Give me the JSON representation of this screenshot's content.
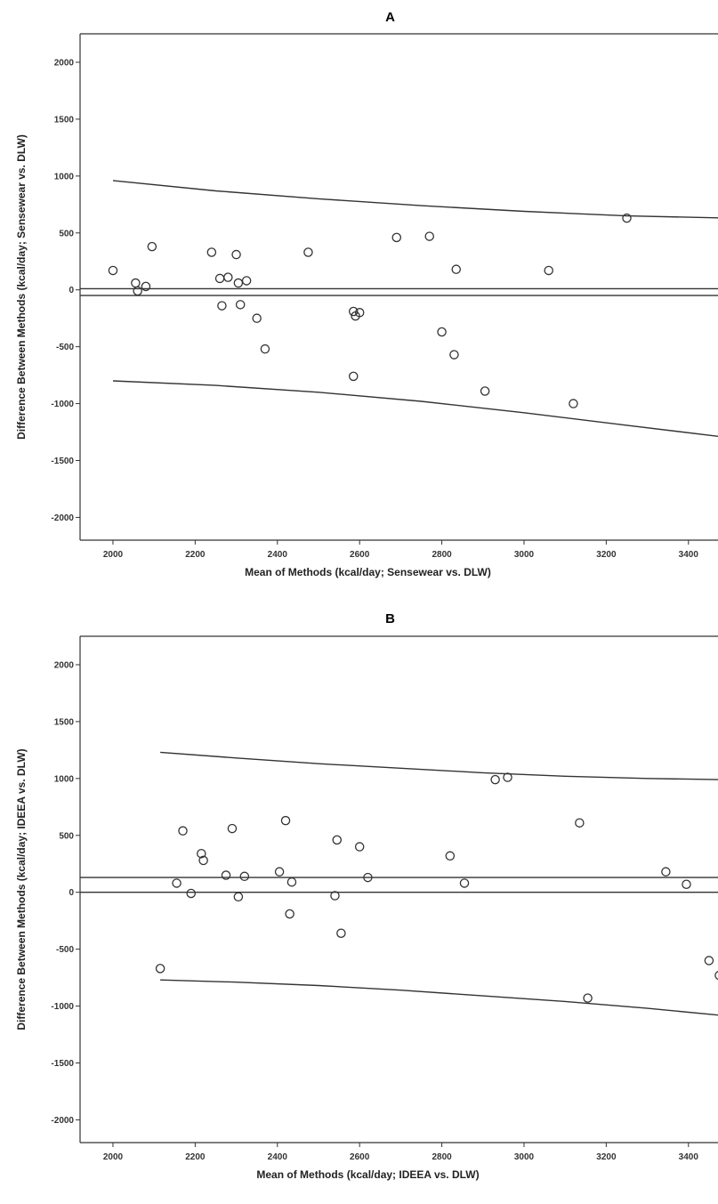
{
  "chart_data": [
    {
      "type": "scatter",
      "panel_label": "A",
      "xlabel": "Mean of Methods (kcal/day; Sensewear vs. DLW)",
      "ylabel": "Difference Between Methods (kcal/day; Sensewear vs. DLW)",
      "xlim": [
        1920,
        3500
      ],
      "ylim": [
        -2200,
        2250
      ],
      "xticks": [
        2000,
        2200,
        2400,
        2600,
        2800,
        3000,
        3200,
        3400
      ],
      "yticks": [
        2000,
        1500,
        1000,
        500,
        0,
        -500,
        -1000,
        -1500,
        -2000
      ],
      "grid": false,
      "points": [
        {
          "x": 2000,
          "y": 170
        },
        {
          "x": 2055,
          "y": 60
        },
        {
          "x": 2060,
          "y": -10
        },
        {
          "x": 2080,
          "y": 30
        },
        {
          "x": 2095,
          "y": 380
        },
        {
          "x": 2240,
          "y": 330
        },
        {
          "x": 2260,
          "y": 100
        },
        {
          "x": 2265,
          "y": -140
        },
        {
          "x": 2280,
          "y": 110
        },
        {
          "x": 2300,
          "y": 310
        },
        {
          "x": 2305,
          "y": 60
        },
        {
          "x": 2310,
          "y": -130
        },
        {
          "x": 2325,
          "y": 80
        },
        {
          "x": 2350,
          "y": -250
        },
        {
          "x": 2370,
          "y": -520
        },
        {
          "x": 2475,
          "y": 330
        },
        {
          "x": 2585,
          "y": -760
        },
        {
          "x": 2585,
          "y": -190
        },
        {
          "x": 2590,
          "y": -230
        },
        {
          "x": 2600,
          "y": -200
        },
        {
          "x": 2690,
          "y": 460
        },
        {
          "x": 2770,
          "y": 470
        },
        {
          "x": 2800,
          "y": -370
        },
        {
          "x": 2830,
          "y": -570
        },
        {
          "x": 2835,
          "y": 180
        },
        {
          "x": 2905,
          "y": -890
        },
        {
          "x": 3060,
          "y": 170
        },
        {
          "x": 3120,
          "y": -1000
        },
        {
          "x": 3250,
          "y": 630
        }
      ],
      "reference_lines": [
        {
          "y": 10
        },
        {
          "y": -50
        }
      ],
      "limit_curves": [
        {
          "x": [
            2000,
            2250,
            2500,
            2750,
            3000,
            3250,
            3500
          ],
          "y": [
            960,
            870,
            800,
            740,
            690,
            650,
            630
          ]
        },
        {
          "x": [
            2000,
            2250,
            2500,
            2750,
            3000,
            3250,
            3500
          ],
          "y": [
            -800,
            -840,
            -900,
            -980,
            -1080,
            -1190,
            -1300
          ]
        }
      ]
    },
    {
      "type": "scatter",
      "panel_label": "B",
      "xlabel": "Mean of Methods (kcal/day; IDEEA vs. DLW)",
      "ylabel": "Difference Between Methods (kcal/day; IDEEA vs. DLW)",
      "xlim": [
        1920,
        3500
      ],
      "ylim": [
        -2200,
        2250
      ],
      "xticks": [
        2000,
        2200,
        2400,
        2600,
        2800,
        3000,
        3200,
        3400
      ],
      "yticks": [
        2000,
        1500,
        1000,
        500,
        0,
        -500,
        -1000,
        -1500,
        -2000
      ],
      "grid": false,
      "points": [
        {
          "x": 2115,
          "y": -670
        },
        {
          "x": 2155,
          "y": 80
        },
        {
          "x": 2170,
          "y": 540
        },
        {
          "x": 2190,
          "y": -10
        },
        {
          "x": 2215,
          "y": 340
        },
        {
          "x": 2220,
          "y": 280
        },
        {
          "x": 2275,
          "y": 150
        },
        {
          "x": 2290,
          "y": 560
        },
        {
          "x": 2305,
          "y": -40
        },
        {
          "x": 2320,
          "y": 140
        },
        {
          "x": 2405,
          "y": 180
        },
        {
          "x": 2420,
          "y": 630
        },
        {
          "x": 2430,
          "y": -190
        },
        {
          "x": 2435,
          "y": 90
        },
        {
          "x": 2540,
          "y": -30
        },
        {
          "x": 2545,
          "y": 460
        },
        {
          "x": 2555,
          "y": -360
        },
        {
          "x": 2600,
          "y": 400
        },
        {
          "x": 2620,
          "y": 130
        },
        {
          "x": 2820,
          "y": 320
        },
        {
          "x": 2855,
          "y": 80
        },
        {
          "x": 2930,
          "y": 990
        },
        {
          "x": 2960,
          "y": 1010
        },
        {
          "x": 3135,
          "y": 610
        },
        {
          "x": 3155,
          "y": -930
        },
        {
          "x": 3345,
          "y": 180
        },
        {
          "x": 3395,
          "y": 70
        },
        {
          "x": 3450,
          "y": -600
        },
        {
          "x": 3475,
          "y": -730
        }
      ],
      "reference_lines": [
        {
          "y": 130
        },
        {
          "y": 0
        }
      ],
      "limit_curves": [
        {
          "x": [
            2115,
            2300,
            2500,
            2700,
            2900,
            3100,
            3300,
            3475
          ],
          "y": [
            1230,
            1180,
            1130,
            1090,
            1050,
            1020,
            1000,
            990
          ]
        },
        {
          "x": [
            2115,
            2300,
            2500,
            2700,
            2900,
            3100,
            3300,
            3475
          ],
          "y": [
            -770,
            -790,
            -820,
            -860,
            -910,
            -960,
            -1020,
            -1080
          ]
        }
      ]
    }
  ]
}
